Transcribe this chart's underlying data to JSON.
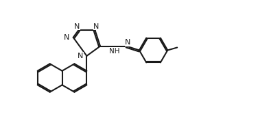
{
  "bg_color": "#ffffff",
  "bond_color": "#1a1a1a",
  "line_width": 1.5,
  "figsize": [
    3.76,
    1.99
  ],
  "dpi": 100,
  "font_size": 8.0,
  "xlim": [
    0,
    9.4
  ],
  "ylim": [
    0,
    4.97
  ]
}
